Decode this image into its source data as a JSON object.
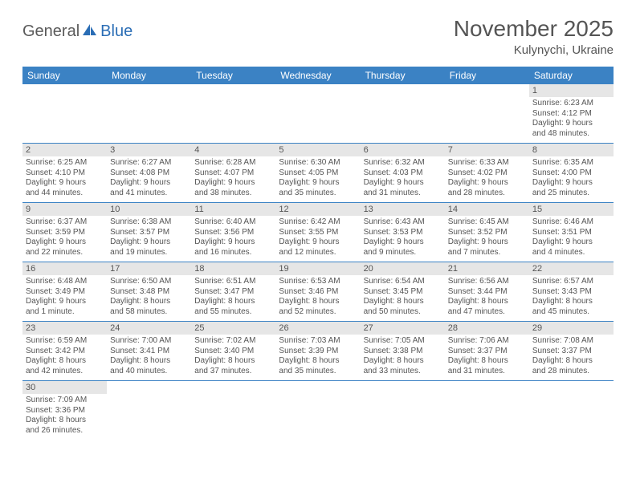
{
  "header": {
    "logo_general": "General",
    "logo_blue": "Blue",
    "month_title": "November 2025",
    "location": "Kulynychi, Ukraine"
  },
  "colors": {
    "header_bg": "#3b82c4",
    "header_fg": "#ffffff",
    "daynum_bg": "#e6e6e6",
    "text": "#555555",
    "row_border": "#3b82c4",
    "logo_blue": "#2a6db5",
    "logo_gray": "#5a5a5a"
  },
  "day_names": [
    "Sunday",
    "Monday",
    "Tuesday",
    "Wednesday",
    "Thursday",
    "Friday",
    "Saturday"
  ],
  "weeks": [
    [
      null,
      null,
      null,
      null,
      null,
      null,
      {
        "n": "1",
        "sr": "Sunrise: 6:23 AM",
        "ss": "Sunset: 4:12 PM",
        "d1": "Daylight: 9 hours",
        "d2": "and 48 minutes."
      }
    ],
    [
      {
        "n": "2",
        "sr": "Sunrise: 6:25 AM",
        "ss": "Sunset: 4:10 PM",
        "d1": "Daylight: 9 hours",
        "d2": "and 44 minutes."
      },
      {
        "n": "3",
        "sr": "Sunrise: 6:27 AM",
        "ss": "Sunset: 4:08 PM",
        "d1": "Daylight: 9 hours",
        "d2": "and 41 minutes."
      },
      {
        "n": "4",
        "sr": "Sunrise: 6:28 AM",
        "ss": "Sunset: 4:07 PM",
        "d1": "Daylight: 9 hours",
        "d2": "and 38 minutes."
      },
      {
        "n": "5",
        "sr": "Sunrise: 6:30 AM",
        "ss": "Sunset: 4:05 PM",
        "d1": "Daylight: 9 hours",
        "d2": "and 35 minutes."
      },
      {
        "n": "6",
        "sr": "Sunrise: 6:32 AM",
        "ss": "Sunset: 4:03 PM",
        "d1": "Daylight: 9 hours",
        "d2": "and 31 minutes."
      },
      {
        "n": "7",
        "sr": "Sunrise: 6:33 AM",
        "ss": "Sunset: 4:02 PM",
        "d1": "Daylight: 9 hours",
        "d2": "and 28 minutes."
      },
      {
        "n": "8",
        "sr": "Sunrise: 6:35 AM",
        "ss": "Sunset: 4:00 PM",
        "d1": "Daylight: 9 hours",
        "d2": "and 25 minutes."
      }
    ],
    [
      {
        "n": "9",
        "sr": "Sunrise: 6:37 AM",
        "ss": "Sunset: 3:59 PM",
        "d1": "Daylight: 9 hours",
        "d2": "and 22 minutes."
      },
      {
        "n": "10",
        "sr": "Sunrise: 6:38 AM",
        "ss": "Sunset: 3:57 PM",
        "d1": "Daylight: 9 hours",
        "d2": "and 19 minutes."
      },
      {
        "n": "11",
        "sr": "Sunrise: 6:40 AM",
        "ss": "Sunset: 3:56 PM",
        "d1": "Daylight: 9 hours",
        "d2": "and 16 minutes."
      },
      {
        "n": "12",
        "sr": "Sunrise: 6:42 AM",
        "ss": "Sunset: 3:55 PM",
        "d1": "Daylight: 9 hours",
        "d2": "and 12 minutes."
      },
      {
        "n": "13",
        "sr": "Sunrise: 6:43 AM",
        "ss": "Sunset: 3:53 PM",
        "d1": "Daylight: 9 hours",
        "d2": "and 9 minutes."
      },
      {
        "n": "14",
        "sr": "Sunrise: 6:45 AM",
        "ss": "Sunset: 3:52 PM",
        "d1": "Daylight: 9 hours",
        "d2": "and 7 minutes."
      },
      {
        "n": "15",
        "sr": "Sunrise: 6:46 AM",
        "ss": "Sunset: 3:51 PM",
        "d1": "Daylight: 9 hours",
        "d2": "and 4 minutes."
      }
    ],
    [
      {
        "n": "16",
        "sr": "Sunrise: 6:48 AM",
        "ss": "Sunset: 3:49 PM",
        "d1": "Daylight: 9 hours",
        "d2": "and 1 minute."
      },
      {
        "n": "17",
        "sr": "Sunrise: 6:50 AM",
        "ss": "Sunset: 3:48 PM",
        "d1": "Daylight: 8 hours",
        "d2": "and 58 minutes."
      },
      {
        "n": "18",
        "sr": "Sunrise: 6:51 AM",
        "ss": "Sunset: 3:47 PM",
        "d1": "Daylight: 8 hours",
        "d2": "and 55 minutes."
      },
      {
        "n": "19",
        "sr": "Sunrise: 6:53 AM",
        "ss": "Sunset: 3:46 PM",
        "d1": "Daylight: 8 hours",
        "d2": "and 52 minutes."
      },
      {
        "n": "20",
        "sr": "Sunrise: 6:54 AM",
        "ss": "Sunset: 3:45 PM",
        "d1": "Daylight: 8 hours",
        "d2": "and 50 minutes."
      },
      {
        "n": "21",
        "sr": "Sunrise: 6:56 AM",
        "ss": "Sunset: 3:44 PM",
        "d1": "Daylight: 8 hours",
        "d2": "and 47 minutes."
      },
      {
        "n": "22",
        "sr": "Sunrise: 6:57 AM",
        "ss": "Sunset: 3:43 PM",
        "d1": "Daylight: 8 hours",
        "d2": "and 45 minutes."
      }
    ],
    [
      {
        "n": "23",
        "sr": "Sunrise: 6:59 AM",
        "ss": "Sunset: 3:42 PM",
        "d1": "Daylight: 8 hours",
        "d2": "and 42 minutes."
      },
      {
        "n": "24",
        "sr": "Sunrise: 7:00 AM",
        "ss": "Sunset: 3:41 PM",
        "d1": "Daylight: 8 hours",
        "d2": "and 40 minutes."
      },
      {
        "n": "25",
        "sr": "Sunrise: 7:02 AM",
        "ss": "Sunset: 3:40 PM",
        "d1": "Daylight: 8 hours",
        "d2": "and 37 minutes."
      },
      {
        "n": "26",
        "sr": "Sunrise: 7:03 AM",
        "ss": "Sunset: 3:39 PM",
        "d1": "Daylight: 8 hours",
        "d2": "and 35 minutes."
      },
      {
        "n": "27",
        "sr": "Sunrise: 7:05 AM",
        "ss": "Sunset: 3:38 PM",
        "d1": "Daylight: 8 hours",
        "d2": "and 33 minutes."
      },
      {
        "n": "28",
        "sr": "Sunrise: 7:06 AM",
        "ss": "Sunset: 3:37 PM",
        "d1": "Daylight: 8 hours",
        "d2": "and 31 minutes."
      },
      {
        "n": "29",
        "sr": "Sunrise: 7:08 AM",
        "ss": "Sunset: 3:37 PM",
        "d1": "Daylight: 8 hours",
        "d2": "and 28 minutes."
      }
    ],
    [
      {
        "n": "30",
        "sr": "Sunrise: 7:09 AM",
        "ss": "Sunset: 3:36 PM",
        "d1": "Daylight: 8 hours",
        "d2": "and 26 minutes."
      },
      null,
      null,
      null,
      null,
      null,
      null
    ]
  ]
}
